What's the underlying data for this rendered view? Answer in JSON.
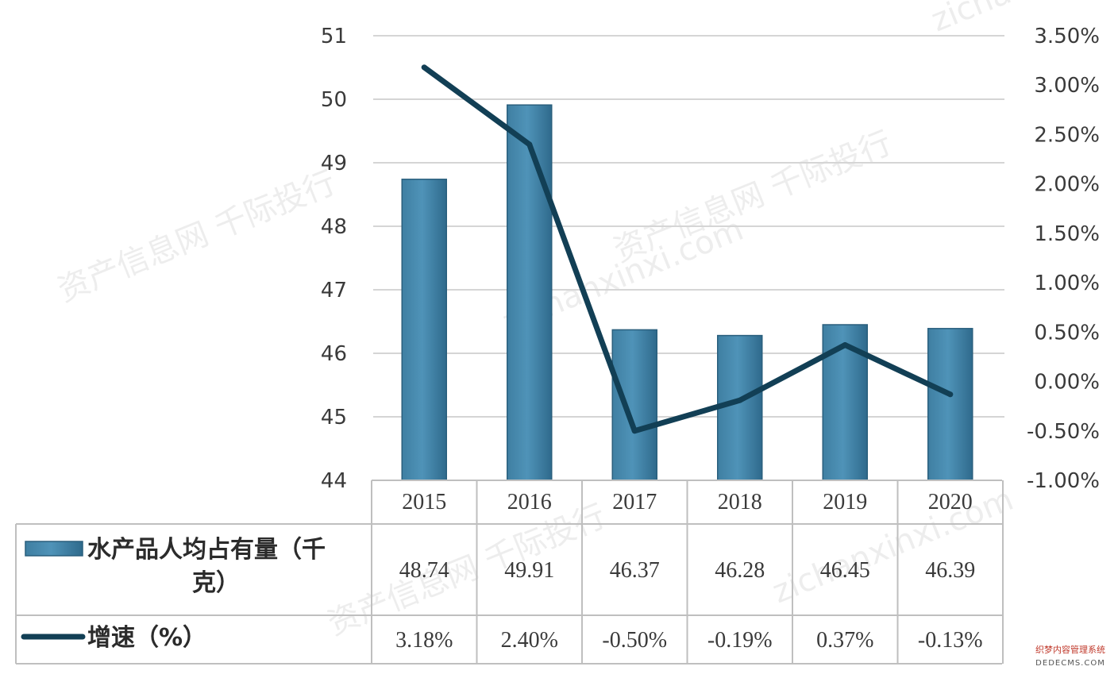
{
  "chart_data": {
    "type": "bar+line",
    "categories": [
      "2015",
      "2016",
      "2017",
      "2018",
      "2019",
      "2020"
    ],
    "series": [
      {
        "name": "水产品人均占有量（千克）",
        "type": "bar",
        "axis": "left",
        "values": [
          48.74,
          49.91,
          46.37,
          46.28,
          46.45,
          46.39
        ],
        "labels": [
          "48.74",
          "49.91",
          "46.37",
          "46.28",
          "46.45",
          "46.39"
        ],
        "color": "#4f93b8"
      },
      {
        "name": "增速（%）",
        "type": "line",
        "axis": "right",
        "values": [
          3.18,
          2.4,
          -0.5,
          -0.19,
          0.37,
          -0.13
        ],
        "labels": [
          "3.18%",
          "2.40%",
          "-0.50%",
          "-0.19%",
          "0.37%",
          "-0.13%"
        ],
        "color": "#123f55"
      }
    ],
    "y_left": {
      "min": 44,
      "max": 51,
      "ticks": [
        "44",
        "45",
        "46",
        "47",
        "48",
        "49",
        "50",
        "51"
      ]
    },
    "y_right": {
      "min": -1.0,
      "max": 3.5,
      "ticks": [
        "-1.00%",
        "-0.50%",
        "0.00%",
        "0.50%",
        "1.00%",
        "1.50%",
        "2.00%",
        "2.50%",
        "3.00%",
        "3.50%"
      ]
    },
    "grid": true,
    "legend": "data-table-below"
  },
  "watermarks": [
    "资产信息网 千际投行",
    "zichanxinxi.com"
  ],
  "badge": {
    "line1": "织梦内容管理系统",
    "line2": "DEDECMS.COM"
  }
}
